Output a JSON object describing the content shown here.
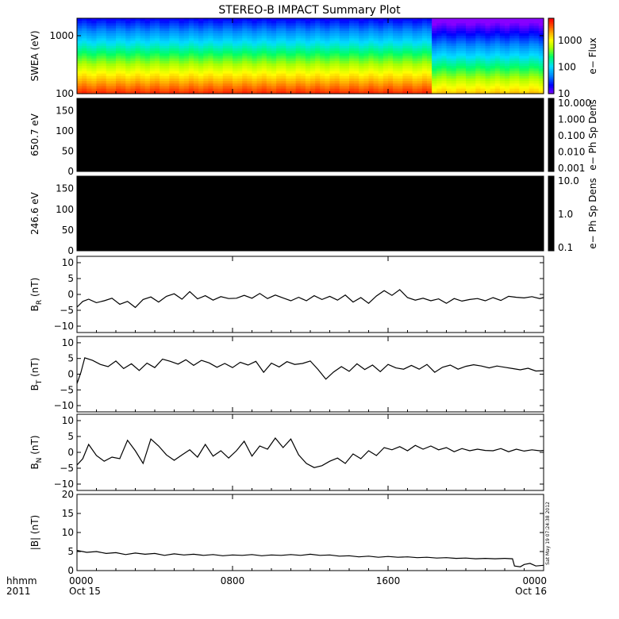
{
  "title": "STEREO-B IMPACT Summary Plot",
  "timestamp_label": "Sat May 19 07:24:38 2012",
  "time_axis": {
    "row1_label": "hhmm",
    "row2_label": "2011",
    "ticks": [
      {
        "t": 0,
        "label": "0000",
        "date": "Oct 15"
      },
      {
        "t": 8,
        "label": "0800",
        "date": ""
      },
      {
        "t": 16,
        "label": "1600",
        "date": ""
      },
      {
        "t": 24,
        "label": "0000",
        "date": "Oct 16"
      }
    ],
    "range_hours": [
      0,
      24
    ]
  },
  "colors": {
    "line": "#000000",
    "spectrogram_scale": [
      "#8800ff",
      "#0000ff",
      "#0088ff",
      "#00ddff",
      "#00ff66",
      "#aaff00",
      "#ffff00",
      "#ffaa00",
      "#ff4400",
      "#ff0000"
    ]
  },
  "chart_data": [
    {
      "type": "heatmap",
      "ylabel": "SWEA (eV)",
      "y_scale": "log",
      "ylim": [
        100,
        2000
      ],
      "yticks": [
        {
          "v": 100,
          "label": "100"
        },
        {
          "v": 1000,
          "label": "1000"
        }
      ],
      "colorbar": {
        "label": "e− Flux",
        "scale": "log",
        "range": [
          10,
          7000
        ],
        "ticks": [
          {
            "v": 10,
            "label": "10"
          },
          {
            "v": 100,
            "label": "100"
          },
          {
            "v": 1000,
            "label": "1000"
          }
        ]
      },
      "flux_at_100eV_start": 5000,
      "flux_at_2000eV": 20,
      "step_change_hour": 18.3
    },
    {
      "type": "heatmap",
      "ylabel": "650.7 eV",
      "ylim": [
        0,
        180
      ],
      "yticks": [
        {
          "v": 0,
          "label": "0"
        },
        {
          "v": 50,
          "label": "50"
        },
        {
          "v": 100,
          "label": "100"
        },
        {
          "v": 150,
          "label": "150"
        }
      ],
      "fill": "#000000",
      "colorbar": {
        "label": "e− Ph Sp Dens",
        "scale": "log",
        "ticks": [
          {
            "label": "10.000"
          },
          {
            "label": "1.000"
          },
          {
            "label": "0.100"
          },
          {
            "label": "0.010"
          },
          {
            "label": "0.001"
          }
        ]
      }
    },
    {
      "type": "heatmap",
      "ylabel": "246.6 eV",
      "ylim": [
        0,
        180
      ],
      "yticks": [
        {
          "v": 0,
          "label": "0"
        },
        {
          "v": 50,
          "label": "50"
        },
        {
          "v": 100,
          "label": "100"
        },
        {
          "v": 150,
          "label": "150"
        }
      ],
      "fill": "#000000",
      "colorbar": {
        "label": "e− Ph Sp Dens",
        "scale": "log",
        "ticks": [
          {
            "label": "10.0"
          },
          {
            "label": "1.0"
          },
          {
            "label": "0.1"
          }
        ]
      }
    },
    {
      "type": "line",
      "ylabel_main": "B",
      "ylabel_sub": "R",
      "ylabel_tail": " (nT)",
      "ylim": [
        -12,
        12
      ],
      "yticks": [
        {
          "v": -10,
          "label": "−10"
        },
        {
          "v": -5,
          "label": "−5"
        },
        {
          "v": 0,
          "label": "0"
        },
        {
          "v": 5,
          "label": "5"
        },
        {
          "v": 10,
          "label": "10"
        }
      ],
      "x": [
        0,
        0.3,
        0.6,
        1.0,
        1.4,
        1.8,
        2.2,
        2.6,
        3.0,
        3.4,
        3.8,
        4.2,
        4.6,
        5.0,
        5.4,
        5.8,
        6.2,
        6.6,
        7.0,
        7.4,
        7.8,
        8.2,
        8.6,
        9.0,
        9.4,
        9.8,
        10.2,
        10.6,
        11.0,
        11.4,
        11.8,
        12.2,
        12.6,
        13.0,
        13.4,
        13.8,
        14.2,
        14.6,
        15.0,
        15.4,
        15.8,
        16.2,
        16.6,
        17.0,
        17.4,
        17.8,
        18.2,
        18.6,
        19.0,
        19.4,
        19.8,
        20.2,
        20.6,
        21.0,
        21.4,
        21.8,
        22.2,
        22.6,
        23.0,
        23.4,
        23.8,
        24.0
      ],
      "y": [
        -4.0,
        -2.2,
        -1.5,
        -2.6,
        -2.0,
        -1.2,
        -3.1,
        -2.2,
        -4.1,
        -1.6,
        -0.8,
        -2.4,
        -0.6,
        0.2,
        -1.5,
        0.9,
        -1.4,
        -0.4,
        -1.8,
        -0.7,
        -1.3,
        -1.2,
        -0.3,
        -1.2,
        0.3,
        -1.3,
        -0.2,
        -1.1,
        -2.0,
        -0.9,
        -2.0,
        -0.4,
        -1.6,
        -0.6,
        -1.8,
        -0.2,
        -2.4,
        -1.0,
        -2.8,
        -0.5,
        1.2,
        -0.3,
        1.5,
        -1.0,
        -1.8,
        -1.2,
        -2.0,
        -1.4,
        -2.8,
        -1.3,
        -2.1,
        -1.6,
        -1.3,
        -2.0,
        -1.0,
        -1.9,
        -0.6,
        -0.9,
        -1.1,
        -0.7,
        -1.3,
        -1.0
      ]
    },
    {
      "type": "line",
      "ylabel_main": "B",
      "ylabel_sub": "T",
      "ylabel_tail": " (nT)",
      "ylim": [
        -12,
        12
      ],
      "yticks": [
        {
          "v": -10,
          "label": "−10"
        },
        {
          "v": -5,
          "label": "−5"
        },
        {
          "v": 0,
          "label": "0"
        },
        {
          "v": 5,
          "label": "5"
        },
        {
          "v": 10,
          "label": "10"
        }
      ],
      "x": [
        0,
        0.2,
        0.4,
        0.8,
        1.2,
        1.6,
        2.0,
        2.4,
        2.8,
        3.2,
        3.6,
        4.0,
        4.4,
        4.8,
        5.2,
        5.6,
        6.0,
        6.4,
        6.8,
        7.2,
        7.6,
        8.0,
        8.4,
        8.8,
        9.2,
        9.6,
        10.0,
        10.4,
        10.8,
        11.2,
        11.6,
        12.0,
        12.4,
        12.8,
        13.2,
        13.6,
        14.0,
        14.4,
        14.8,
        15.2,
        15.6,
        16.0,
        16.4,
        16.8,
        17.2,
        17.6,
        18.0,
        18.4,
        18.8,
        19.2,
        19.6,
        20.0,
        20.4,
        20.8,
        21.2,
        21.6,
        22.0,
        22.4,
        22.8,
        23.2,
        23.6,
        24.0
      ],
      "y": [
        -3.0,
        0.5,
        5.2,
        4.4,
        3.1,
        2.4,
        4.2,
        1.8,
        3.3,
        1.2,
        3.5,
        2.1,
        4.8,
        4.1,
        3.2,
        4.6,
        2.8,
        4.4,
        3.6,
        2.2,
        3.4,
        2.1,
        3.8,
        2.9,
        4.1,
        0.6,
        3.5,
        2.3,
        4.0,
        3.1,
        3.4,
        4.2,
        1.5,
        -1.6,
        0.7,
        2.4,
        0.9,
        3.3,
        1.5,
        2.9,
        0.8,
        3.1,
        2.0,
        1.6,
        2.8,
        1.6,
        3.1,
        0.6,
        2.2,
        2.9,
        1.6,
        2.5,
        3.0,
        2.6,
        2.0,
        2.6,
        2.2,
        1.8,
        1.4,
        1.9,
        1.0,
        1.1
      ]
    },
    {
      "type": "line",
      "ylabel_main": "B",
      "ylabel_sub": "N",
      "ylabel_tail": " (nT)",
      "ylim": [
        -12,
        12
      ],
      "yticks": [
        {
          "v": -10,
          "label": "−10"
        },
        {
          "v": -5,
          "label": "−5"
        },
        {
          "v": 0,
          "label": "0"
        },
        {
          "v": 5,
          "label": "5"
        },
        {
          "v": 10,
          "label": "10"
        }
      ],
      "x": [
        0,
        0.3,
        0.6,
        1.0,
        1.4,
        1.8,
        2.2,
        2.6,
        3.0,
        3.4,
        3.8,
        4.2,
        4.6,
        5.0,
        5.4,
        5.8,
        6.2,
        6.6,
        7.0,
        7.4,
        7.8,
        8.2,
        8.6,
        9.0,
        9.4,
        9.8,
        10.2,
        10.6,
        11.0,
        11.4,
        11.8,
        12.2,
        12.6,
        13.0,
        13.4,
        13.8,
        14.2,
        14.6,
        15.0,
        15.4,
        15.8,
        16.2,
        16.6,
        17.0,
        17.4,
        17.8,
        18.2,
        18.6,
        19.0,
        19.4,
        19.8,
        20.2,
        20.6,
        21.0,
        21.4,
        21.8,
        22.2,
        22.6,
        23.0,
        23.4,
        23.8,
        24.0
      ],
      "y": [
        -4.0,
        -2.0,
        2.5,
        -1.0,
        -2.8,
        -1.5,
        -2.0,
        3.8,
        0.5,
        -3.5,
        4.2,
        2.0,
        -0.8,
        -2.5,
        -0.8,
        0.8,
        -1.5,
        2.5,
        -1.2,
        0.5,
        -1.8,
        0.5,
        3.5,
        -1.2,
        2.0,
        1.0,
        4.5,
        1.5,
        4.2,
        -0.8,
        -3.5,
        -4.8,
        -4.2,
        -2.8,
        -1.8,
        -3.5,
        -0.5,
        -2.0,
        0.5,
        -1.0,
        1.5,
        0.8,
        1.8,
        0.5,
        2.2,
        1.0,
        2.0,
        0.8,
        1.5,
        0.2,
        1.2,
        0.5,
        1.0,
        0.6,
        0.5,
        1.2,
        0.2,
        1.0,
        0.4,
        0.8,
        0.5,
        0.6
      ]
    },
    {
      "type": "line",
      "ylabel_main": "|B|",
      "ylabel_sub": "",
      "ylabel_tail": " (nT)",
      "ylim": [
        0,
        20
      ],
      "yticks": [
        {
          "v": 0,
          "label": "0"
        },
        {
          "v": 5,
          "label": "5"
        },
        {
          "v": 10,
          "label": "10"
        },
        {
          "v": 15,
          "label": "15"
        },
        {
          "v": 20,
          "label": "20"
        }
      ],
      "x": [
        0,
        0.5,
        1.0,
        1.5,
        2.0,
        2.5,
        3.0,
        3.5,
        4.0,
        4.5,
        5.0,
        5.5,
        6.0,
        6.5,
        7.0,
        7.5,
        8.0,
        8.5,
        9.0,
        9.5,
        10.0,
        10.5,
        11.0,
        11.5,
        12.0,
        12.5,
        13.0,
        13.5,
        14.0,
        14.5,
        15.0,
        15.5,
        16.0,
        16.5,
        17.0,
        17.5,
        18.0,
        18.5,
        19.0,
        19.5,
        20.0,
        20.5,
        21.0,
        21.5,
        22.0,
        22.4,
        22.5,
        22.8,
        23.0,
        23.3,
        23.6,
        24.0
      ],
      "y": [
        5.3,
        4.8,
        5.0,
        4.5,
        4.7,
        4.2,
        4.6,
        4.3,
        4.5,
        4.0,
        4.4,
        4.1,
        4.3,
        4.0,
        4.2,
        3.9,
        4.1,
        4.0,
        4.2,
        3.9,
        4.1,
        4.0,
        4.2,
        4.0,
        4.3,
        4.0,
        4.1,
        3.8,
        3.9,
        3.6,
        3.8,
        3.5,
        3.7,
        3.5,
        3.6,
        3.4,
        3.5,
        3.3,
        3.4,
        3.2,
        3.3,
        3.1,
        3.2,
        3.1,
        3.2,
        3.1,
        1.2,
        1.0,
        1.6,
        1.9,
        1.2,
        1.4
      ]
    }
  ]
}
